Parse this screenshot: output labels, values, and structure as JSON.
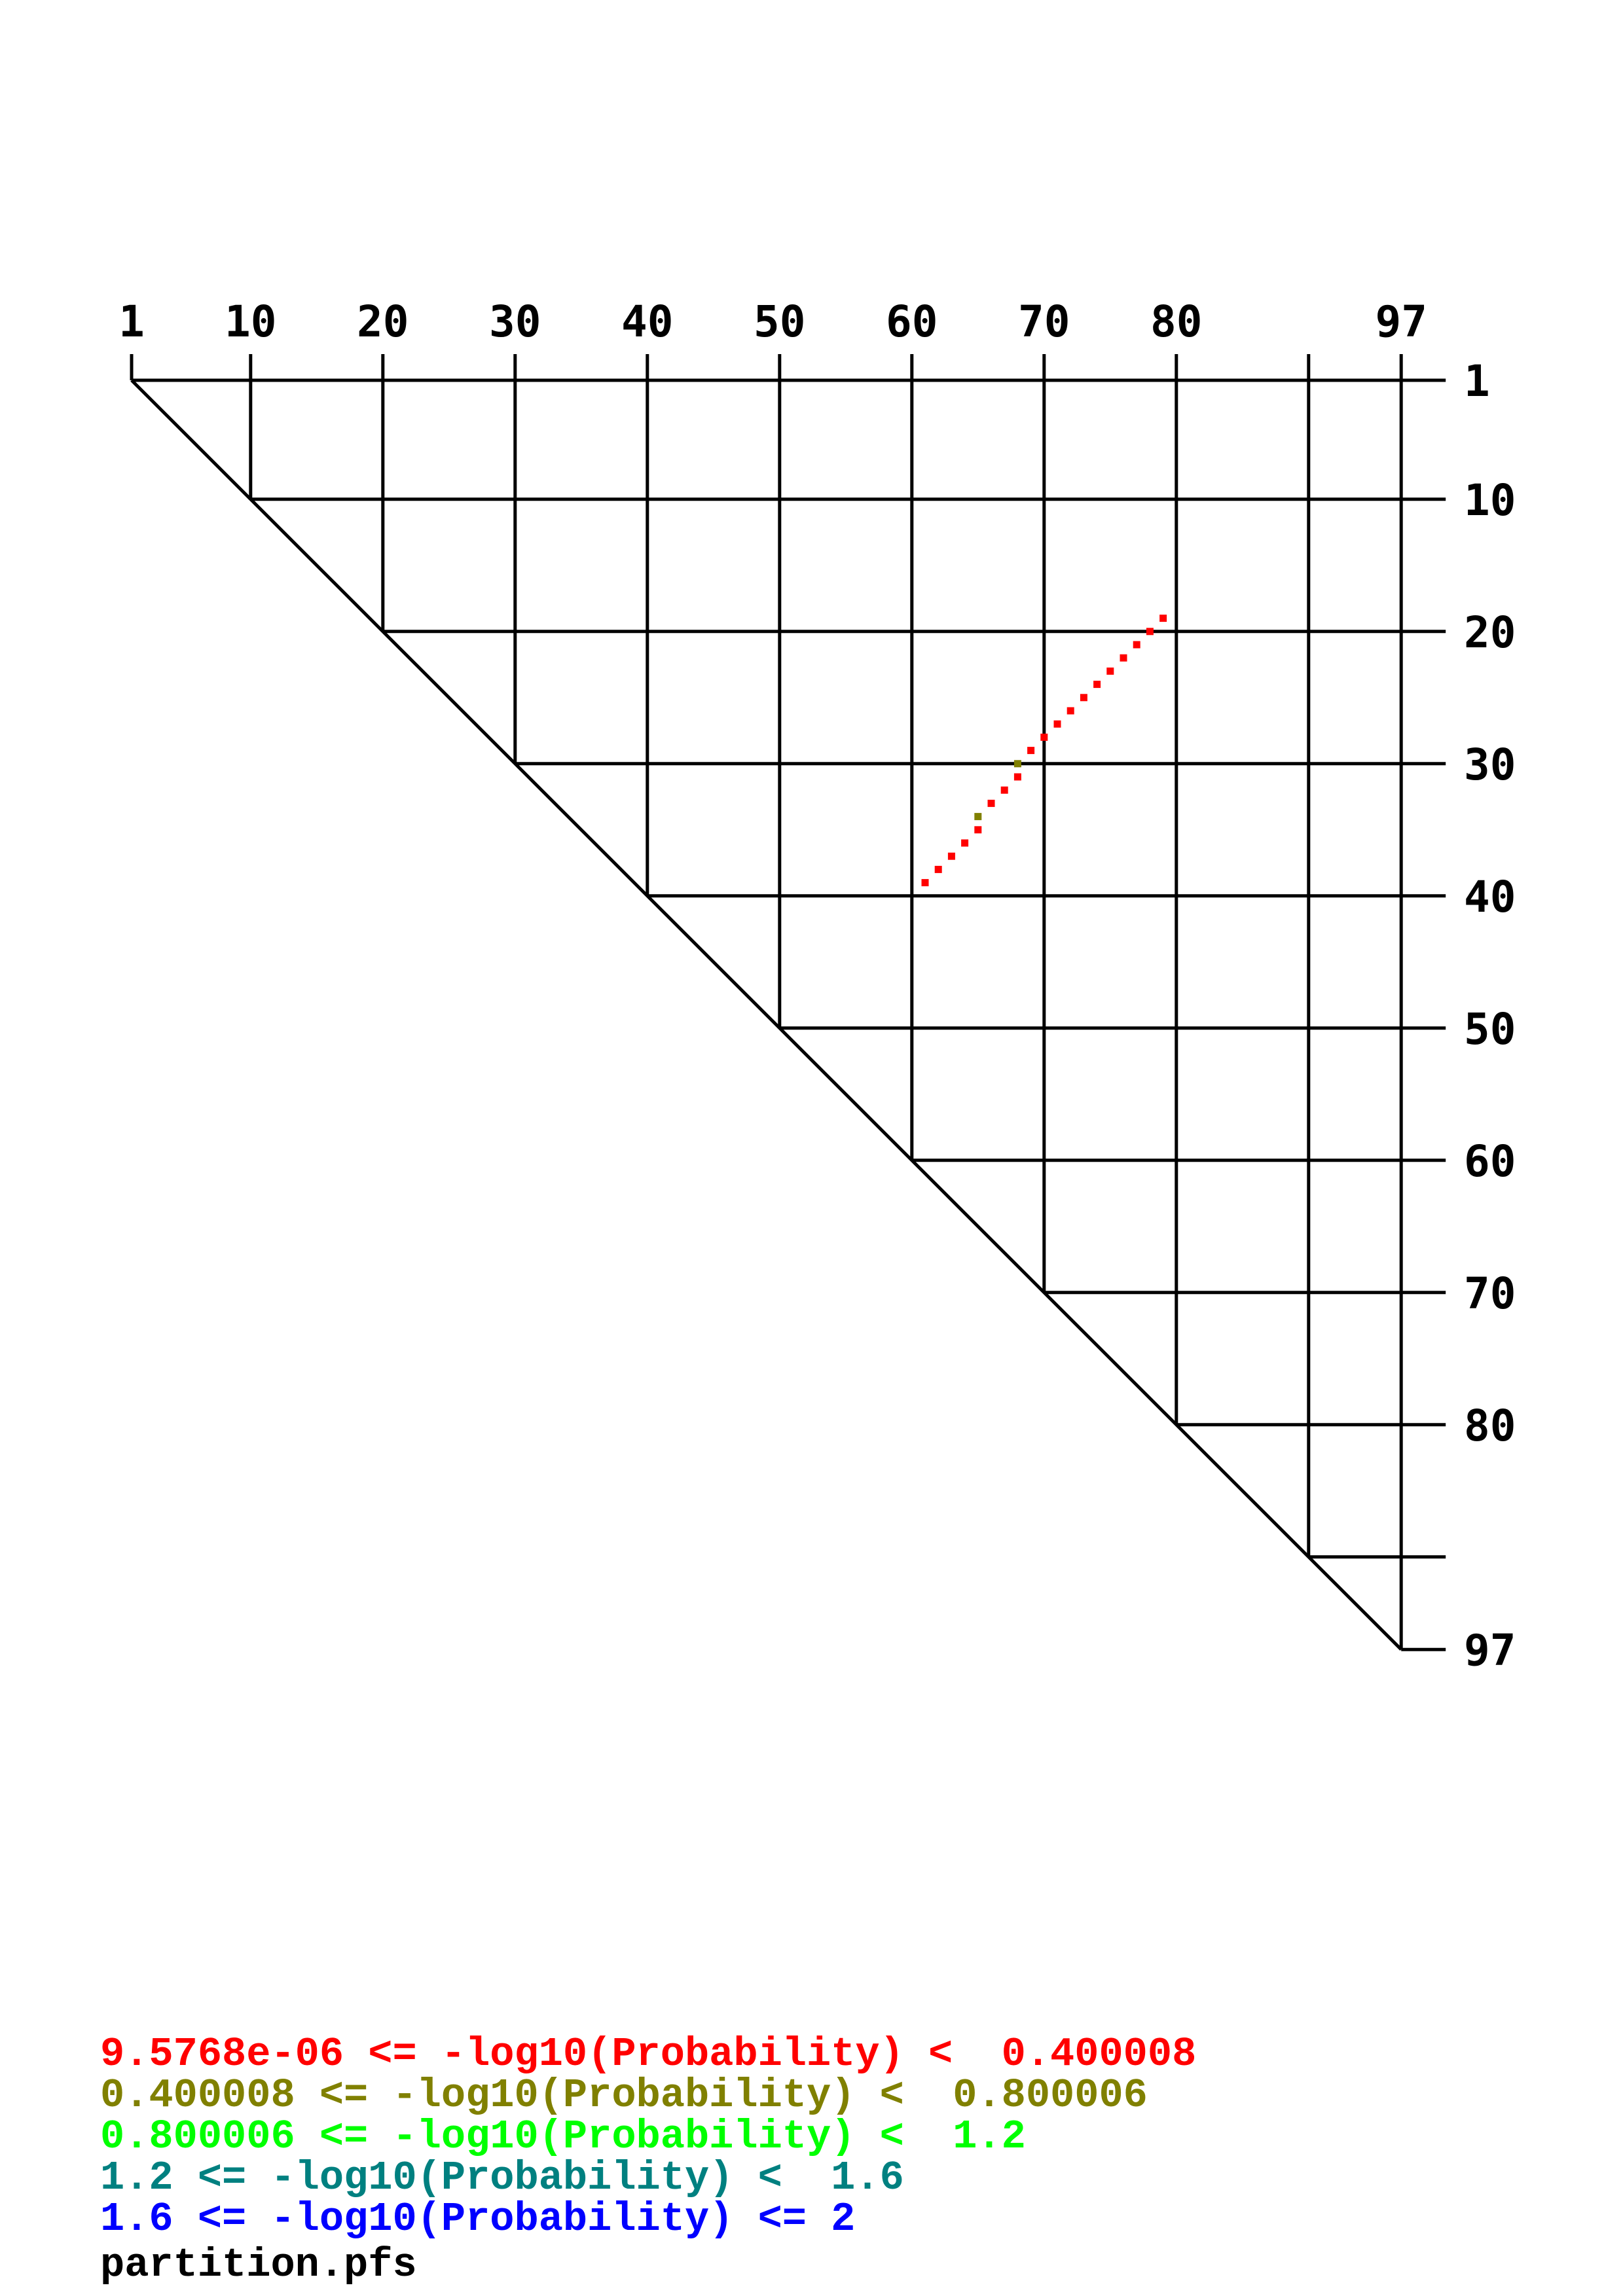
{
  "chart_data": {
    "type": "scatter",
    "subtype": "rna-dot-plot-upper-triangle",
    "sequence_length": 97,
    "axis_range": [
      1,
      97
    ],
    "top_tick_labels": [
      "1",
      "10",
      "20",
      "30",
      "40",
      "50",
      "60",
      "70",
      "80",
      "97"
    ],
    "right_tick_labels": [
      "1",
      "10",
      "20",
      "30",
      "40",
      "50",
      "60",
      "70",
      "80",
      "97"
    ],
    "grid_ticks": [
      1,
      10,
      20,
      30,
      40,
      50,
      60,
      70,
      80,
      90,
      97
    ],
    "grid": true,
    "legend_placement": "bottom-left",
    "legend": [
      {
        "label": "9.5768e-06 <= -log10(Probability) <  0.400008",
        "color": "#ff0000"
      },
      {
        "label": "0.400008 <= -log10(Probability) <  0.800006",
        "color": "#808000"
      },
      {
        "label": "0.800006 <= -log10(Probability) <  1.2",
        "color": "#00ff00"
      },
      {
        "label": "1.2 <= -log10(Probability) <  1.6",
        "color": "#008080"
      },
      {
        "label": "1.6 <= -log10(Probability) <= 2",
        "color": "#0000ff"
      }
    ],
    "points": [
      {
        "i": 19,
        "j": 79,
        "bin": 0
      },
      {
        "i": 20,
        "j": 78,
        "bin": 0
      },
      {
        "i": 21,
        "j": 77,
        "bin": 0
      },
      {
        "i": 22,
        "j": 76,
        "bin": 0
      },
      {
        "i": 23,
        "j": 75,
        "bin": 0
      },
      {
        "i": 24,
        "j": 74,
        "bin": 0
      },
      {
        "i": 25,
        "j": 73,
        "bin": 0
      },
      {
        "i": 26,
        "j": 72,
        "bin": 0
      },
      {
        "i": 27,
        "j": 71,
        "bin": 0
      },
      {
        "i": 28,
        "j": 70,
        "bin": 0
      },
      {
        "i": 29,
        "j": 69,
        "bin": 0
      },
      {
        "i": 30,
        "j": 68,
        "bin": 1
      },
      {
        "i": 31,
        "j": 68,
        "bin": 0
      },
      {
        "i": 32,
        "j": 67,
        "bin": 0
      },
      {
        "i": 33,
        "j": 66,
        "bin": 0
      },
      {
        "i": 34,
        "j": 65,
        "bin": 1
      },
      {
        "i": 35,
        "j": 65,
        "bin": 0
      },
      {
        "i": 36,
        "j": 64,
        "bin": 0
      },
      {
        "i": 37,
        "j": 63,
        "bin": 0
      },
      {
        "i": 38,
        "j": 62,
        "bin": 0
      },
      {
        "i": 39,
        "j": 61,
        "bin": 0
      }
    ]
  },
  "footer": {
    "filename": "partition.pfs"
  }
}
